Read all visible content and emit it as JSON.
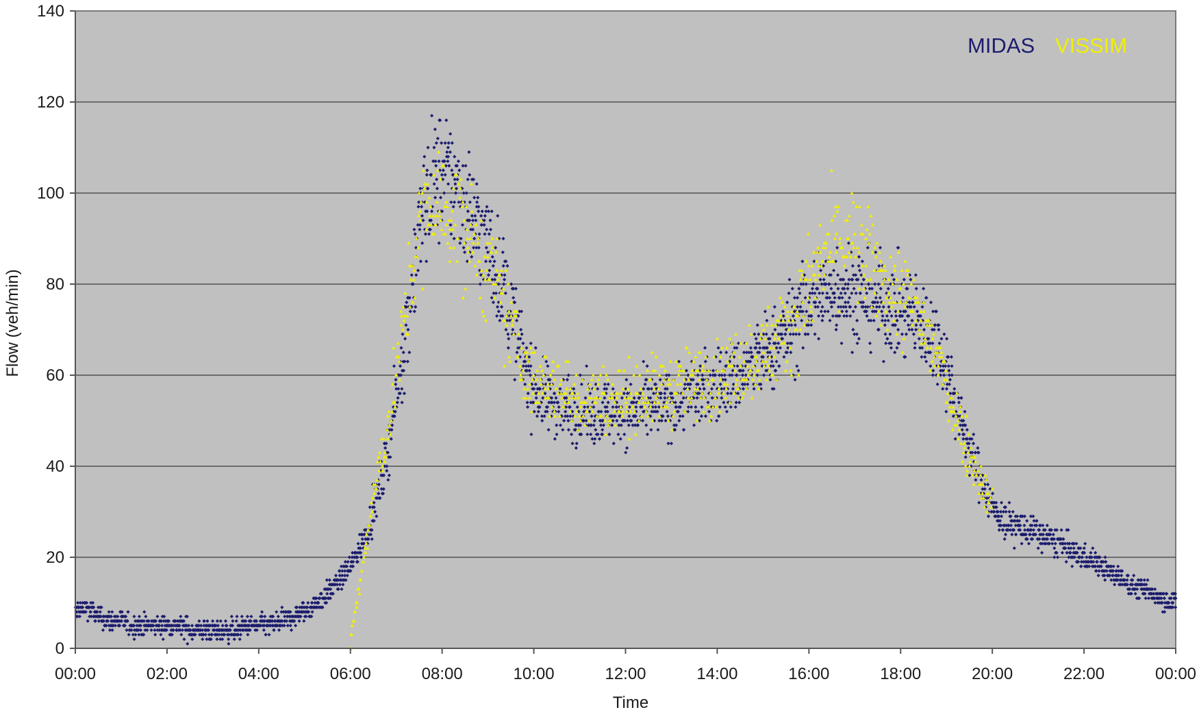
{
  "chart_data": {
    "type": "scatter",
    "title": "",
    "xlabel": "Time",
    "ylabel": "Flow (veh/min)",
    "xlim": [
      "00:00",
      "24:00"
    ],
    "ylim": [
      0,
      140
    ],
    "x_tick_labels": [
      "00:00",
      "02:00",
      "04:00",
      "06:00",
      "08:00",
      "10:00",
      "12:00",
      "14:00",
      "16:00",
      "18:00",
      "20:00",
      "22:00",
      "00:00"
    ],
    "y_tick_labels": [
      "0",
      "20",
      "40",
      "60",
      "80",
      "100",
      "120",
      "140"
    ],
    "y_ticks": [
      0,
      20,
      40,
      60,
      80,
      100,
      120,
      140
    ],
    "grid": "horizontal",
    "legend_position": "top-right",
    "plot_background": "#c0c0c0",
    "series": [
      {
        "name": "MIDAS",
        "color": "#1c1c6e",
        "marker": "diamond",
        "points": [
          [
            "00:00",
            8
          ],
          [
            "00:15",
            9
          ],
          [
            "00:30",
            7
          ],
          [
            "00:45",
            6
          ],
          [
            "01:00",
            6
          ],
          [
            "01:15",
            5
          ],
          [
            "01:30",
            5
          ],
          [
            "01:45",
            5
          ],
          [
            "02:00",
            5
          ],
          [
            "02:15",
            5
          ],
          [
            "02:30",
            4
          ],
          [
            "02:45",
            4
          ],
          [
            "03:00",
            4
          ],
          [
            "03:15",
            4
          ],
          [
            "03:30",
            4
          ],
          [
            "03:45",
            5
          ],
          [
            "04:00",
            5
          ],
          [
            "04:15",
            5
          ],
          [
            "04:30",
            6
          ],
          [
            "04:45",
            7
          ],
          [
            "05:00",
            8
          ],
          [
            "05:15",
            10
          ],
          [
            "05:30",
            12
          ],
          [
            "05:45",
            15
          ],
          [
            "06:00",
            18
          ],
          [
            "06:15",
            23
          ],
          [
            "06:30",
            30
          ],
          [
            "06:45",
            40
          ],
          [
            "07:00",
            55
          ],
          [
            "07:15",
            72
          ],
          [
            "07:30",
            92
          ],
          [
            "07:45",
            102
          ],
          [
            "08:00",
            104
          ],
          [
            "08:15",
            102
          ],
          [
            "08:30",
            98
          ],
          [
            "08:45",
            93
          ],
          [
            "09:00",
            88
          ],
          [
            "09:15",
            82
          ],
          [
            "09:30",
            74
          ],
          [
            "09:45",
            64
          ],
          [
            "10:00",
            57
          ],
          [
            "10:15",
            55
          ],
          [
            "10:30",
            54
          ],
          [
            "10:45",
            53
          ],
          [
            "11:00",
            52
          ],
          [
            "11:15",
            52
          ],
          [
            "11:30",
            52
          ],
          [
            "11:45",
            52
          ],
          [
            "12:00",
            52
          ],
          [
            "12:15",
            52
          ],
          [
            "12:30",
            53
          ],
          [
            "12:45",
            53
          ],
          [
            "13:00",
            54
          ],
          [
            "13:15",
            55
          ],
          [
            "13:30",
            56
          ],
          [
            "13:45",
            57
          ],
          [
            "14:00",
            58
          ],
          [
            "14:15",
            59
          ],
          [
            "14:30",
            60
          ],
          [
            "14:45",
            62
          ],
          [
            "15:00",
            64
          ],
          [
            "15:15",
            66
          ],
          [
            "15:30",
            69
          ],
          [
            "15:45",
            72
          ],
          [
            "16:00",
            75
          ],
          [
            "16:15",
            78
          ],
          [
            "16:30",
            79
          ],
          [
            "16:45",
            79
          ],
          [
            "17:00",
            78
          ],
          [
            "17:15",
            77
          ],
          [
            "17:30",
            76
          ],
          [
            "17:45",
            75
          ],
          [
            "18:00",
            74
          ],
          [
            "18:15",
            73
          ],
          [
            "18:30",
            71
          ],
          [
            "18:45",
            68
          ],
          [
            "19:00",
            62
          ],
          [
            "19:15",
            52
          ],
          [
            "19:30",
            44
          ],
          [
            "19:45",
            37
          ],
          [
            "20:00",
            31
          ],
          [
            "20:15",
            28
          ],
          [
            "20:30",
            27
          ],
          [
            "20:45",
            26
          ],
          [
            "21:00",
            25
          ],
          [
            "21:15",
            24
          ],
          [
            "21:30",
            23
          ],
          [
            "21:45",
            21
          ],
          [
            "22:00",
            20
          ],
          [
            "22:15",
            19
          ],
          [
            "22:30",
            17
          ],
          [
            "22:45",
            16
          ],
          [
            "23:00",
            14
          ],
          [
            "23:15",
            13
          ],
          [
            "23:30",
            12
          ],
          [
            "23:45",
            11
          ],
          [
            "24:00",
            10
          ]
        ]
      },
      {
        "name": "VISSIM",
        "color": "#f0f000",
        "marker": "triangle",
        "points": [
          [
            "06:00",
            2
          ],
          [
            "06:10",
            12
          ],
          [
            "06:20",
            22
          ],
          [
            "06:30",
            33
          ],
          [
            "06:45",
            45
          ],
          [
            "07:00",
            60
          ],
          [
            "07:15",
            76
          ],
          [
            "07:30",
            92
          ],
          [
            "07:45",
            98
          ],
          [
            "08:00",
            97
          ],
          [
            "08:15",
            95
          ],
          [
            "08:30",
            92
          ],
          [
            "08:45",
            88
          ],
          [
            "09:00",
            83
          ],
          [
            "09:15",
            78
          ],
          [
            "09:30",
            71
          ],
          [
            "09:45",
            63
          ],
          [
            "10:00",
            58
          ],
          [
            "10:15",
            58
          ],
          [
            "10:30",
            57
          ],
          [
            "10:45",
            56
          ],
          [
            "11:00",
            55
          ],
          [
            "11:15",
            55
          ],
          [
            "11:30",
            55
          ],
          [
            "11:45",
            55
          ],
          [
            "12:00",
            55
          ],
          [
            "12:15",
            56
          ],
          [
            "12:30",
            56
          ],
          [
            "12:45",
            57
          ],
          [
            "13:00",
            57
          ],
          [
            "13:15",
            58
          ],
          [
            "13:30",
            58
          ],
          [
            "13:45",
            59
          ],
          [
            "14:00",
            60
          ],
          [
            "14:15",
            61
          ],
          [
            "14:30",
            62
          ],
          [
            "14:45",
            63
          ],
          [
            "15:00",
            65
          ],
          [
            "15:15",
            67
          ],
          [
            "15:30",
            70
          ],
          [
            "15:45",
            74
          ],
          [
            "16:00",
            79
          ],
          [
            "16:15",
            84
          ],
          [
            "16:30",
            89
          ],
          [
            "16:45",
            90
          ],
          [
            "17:00",
            88
          ],
          [
            "17:15",
            85
          ],
          [
            "17:30",
            82
          ],
          [
            "17:45",
            79
          ],
          [
            "18:00",
            77
          ],
          [
            "18:15",
            75
          ],
          [
            "18:30",
            71
          ],
          [
            "18:45",
            65
          ],
          [
            "19:00",
            58
          ],
          [
            "19:15",
            50
          ],
          [
            "19:30",
            43
          ],
          [
            "19:45",
            37
          ],
          [
            "20:00",
            31
          ]
        ]
      }
    ]
  }
}
